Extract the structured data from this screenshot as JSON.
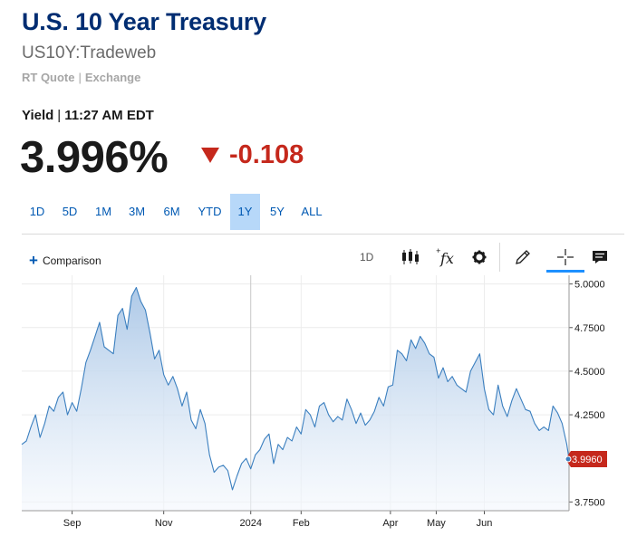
{
  "header": {
    "title": "U.S. 10 Year Treasury",
    "subtitle": "US10Y:Tradeweb",
    "quote_type": "RT Quote",
    "source": "Exchange"
  },
  "quote": {
    "label": "Yield",
    "time": "11:27 AM EDT",
    "price": "3.996%",
    "change": "-0.108",
    "direction": "down"
  },
  "ranges": [
    {
      "label": "1D",
      "active": false
    },
    {
      "label": "5D",
      "active": false
    },
    {
      "label": "1M",
      "active": false
    },
    {
      "label": "3M",
      "active": false
    },
    {
      "label": "6M",
      "active": false
    },
    {
      "label": "YTD",
      "active": false
    },
    {
      "label": "1Y",
      "active": true
    },
    {
      "label": "5Y",
      "active": false
    },
    {
      "label": "ALL",
      "active": false
    }
  ],
  "toolbar": {
    "comparison_label": "Comparison",
    "interval_label": "1D",
    "icons": [
      "candlestick-icon",
      "function-fx-icon",
      "gear-icon",
      "pencil-draw-icon",
      "crosshair-icon",
      "chat-comment-icon"
    ]
  },
  "colors": {
    "title": "#002d72",
    "negative": "#c5281c",
    "accent": "#0059b3",
    "line": "#3b7fbf",
    "area_top": "#b3cde8",
    "last_price_badge": "#c5281c"
  },
  "chart_data": {
    "type": "area",
    "title": "",
    "xlabel": "",
    "ylabel": "",
    "ylim": [
      3.7,
      5.05
    ],
    "x_tick_labels": [
      "Sep",
      "Nov",
      "2024",
      "Feb",
      "Apr",
      "May",
      "Jun"
    ],
    "x_tick_months": [
      1.1,
      3.1,
      5.0,
      6.1,
      8.05,
      9.05,
      10.1
    ],
    "y_ticks": [
      "5.0000",
      "4.7500",
      "4.5000",
      "4.2500",
      "3.7500"
    ],
    "y_tick_values": [
      5.0,
      4.75,
      4.5,
      4.25,
      3.75
    ],
    "last_value_label": "3.9960",
    "last_value": 3.996,
    "grid": true,
    "series": [
      {
        "x": [
          0.0,
          0.1,
          0.2,
          0.3,
          0.4,
          0.5,
          0.6,
          0.7,
          0.8,
          0.9,
          1.0,
          1.1,
          1.2,
          1.3,
          1.4,
          1.5,
          1.6,
          1.7,
          1.8,
          1.9,
          2.0,
          2.1,
          2.2,
          2.3,
          2.4,
          2.5,
          2.6,
          2.7,
          2.8,
          2.9,
          3.0,
          3.1,
          3.2,
          3.3,
          3.4,
          3.5,
          3.6,
          3.7,
          3.8,
          3.9,
          4.0,
          4.1,
          4.2,
          4.3,
          4.4,
          4.5,
          4.6,
          4.7,
          4.8,
          4.9,
          5.0,
          5.1,
          5.2,
          5.3,
          5.4,
          5.5,
          5.6,
          5.7,
          5.8,
          5.9,
          6.0,
          6.1,
          6.2,
          6.3,
          6.4,
          6.5,
          6.6,
          6.7,
          6.8,
          6.9,
          7.0,
          7.1,
          7.2,
          7.3,
          7.4,
          7.5,
          7.6,
          7.7,
          7.8,
          7.9,
          8.0,
          8.1,
          8.2,
          8.3,
          8.4,
          8.5,
          8.6,
          8.7,
          8.8,
          8.9,
          9.0,
          9.1,
          9.2,
          9.3,
          9.4,
          9.5,
          9.6,
          9.7,
          9.8,
          9.9,
          10.0,
          10.1,
          10.2,
          10.3,
          10.4,
          10.5,
          10.6,
          10.7,
          10.8,
          10.9,
          11.0,
          11.1,
          11.2,
          11.3,
          11.4,
          11.5,
          11.6,
          11.7,
          11.8,
          11.9,
          11.95
        ],
        "values": [
          4.08,
          4.1,
          4.18,
          4.25,
          4.12,
          4.2,
          4.3,
          4.27,
          4.35,
          4.38,
          4.25,
          4.32,
          4.27,
          4.4,
          4.55,
          4.62,
          4.7,
          4.78,
          4.64,
          4.62,
          4.6,
          4.82,
          4.86,
          4.74,
          4.93,
          4.98,
          4.9,
          4.85,
          4.72,
          4.57,
          4.62,
          4.48,
          4.42,
          4.47,
          4.4,
          4.3,
          4.38,
          4.22,
          4.17,
          4.28,
          4.2,
          4.02,
          3.92,
          3.95,
          3.96,
          3.93,
          3.82,
          3.9,
          3.97,
          4.0,
          3.94,
          4.02,
          4.05,
          4.11,
          4.14,
          3.97,
          4.08,
          4.05,
          4.12,
          4.1,
          4.18,
          4.14,
          4.28,
          4.25,
          4.18,
          4.3,
          4.32,
          4.25,
          4.21,
          4.24,
          4.22,
          4.34,
          4.28,
          4.2,
          4.26,
          4.19,
          4.22,
          4.27,
          4.35,
          4.3,
          4.41,
          4.42,
          4.62,
          4.6,
          4.56,
          4.68,
          4.63,
          4.7,
          4.66,
          4.6,
          4.58,
          4.46,
          4.52,
          4.44,
          4.47,
          4.42,
          4.4,
          4.38,
          4.5,
          4.55,
          4.6,
          4.4,
          4.28,
          4.25,
          4.42,
          4.3,
          4.24,
          4.33,
          4.4,
          4.34,
          4.28,
          4.27,
          4.2,
          4.16,
          4.18,
          4.16,
          4.3,
          4.26,
          4.2,
          4.08,
          3.996
        ]
      }
    ]
  }
}
